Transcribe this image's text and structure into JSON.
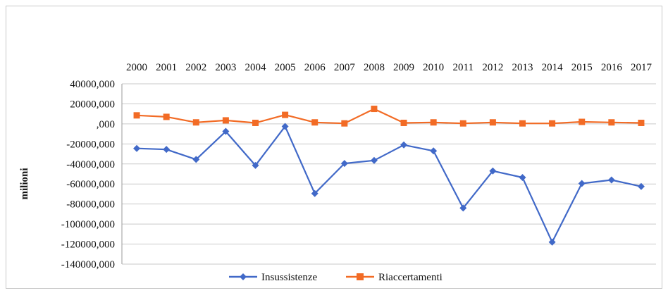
{
  "chart_data": {
    "type": "line",
    "categories": [
      "2000",
      "2001",
      "2002",
      "2003",
      "2004",
      "2005",
      "2006",
      "2007",
      "2008",
      "2009",
      "2010",
      "2011",
      "2012",
      "2013",
      "2014",
      "2015",
      "2016",
      "2017"
    ],
    "series": [
      {
        "name": "Insussistenze",
        "color": "#4169c8",
        "marker": "diamond",
        "values": [
          -24500,
          -25500,
          -35500,
          -7500,
          -41500,
          -2500,
          -69500,
          -39500,
          -36500,
          -21000,
          -27000,
          -84000,
          -47000,
          -53500,
          -118000,
          -59500,
          -56000,
          -62500
        ]
      },
      {
        "name": "Riaccertamenti",
        "color": "#f26b25",
        "marker": "square",
        "values": [
          8500,
          7000,
          1500,
          3500,
          1000,
          9000,
          1500,
          500,
          15000,
          1000,
          1500,
          500,
          1500,
          500,
          500,
          2000,
          1500,
          1000
        ]
      }
    ],
    "ylabel": "milioni",
    "ylim": [
      -140000,
      40000
    ],
    "yticks": [
      40000,
      20000,
      0,
      -20000,
      -40000,
      -60000,
      -80000,
      -100000,
      -120000,
      -140000
    ],
    "ytick_labels": [
      "40000,000",
      "20000,000",
      ",000",
      "-20000,000",
      "-40000,000",
      "-60000,000",
      "-80000,000",
      "-100000,000",
      "-120000,000",
      "-140000,000"
    ],
    "xaxis_position": "top",
    "grid": true,
    "legend": "bottom"
  }
}
